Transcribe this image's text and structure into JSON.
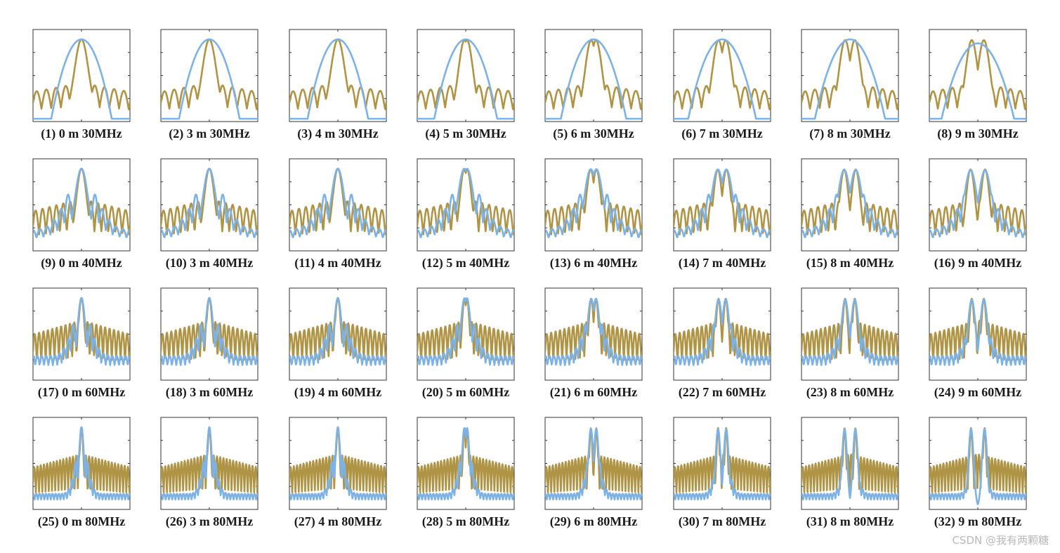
{
  "chart_data": {
    "type": "line",
    "layout": "small-multiples 4 rows x 8 columns",
    "series_colors": {
      "series_a": "#B09445",
      "series_b": "#7EB2E4"
    },
    "panels": [
      {
        "label": "(1) 0 m 30MHz",
        "distance_m": 0,
        "frequency_mhz": 30
      },
      {
        "label": "(2) 3 m 30MHz",
        "distance_m": 3,
        "frequency_mhz": 30
      },
      {
        "label": "(3) 4 m 30MHz",
        "distance_m": 4,
        "frequency_mhz": 30
      },
      {
        "label": "(4) 5 m 30MHz",
        "distance_m": 5,
        "frequency_mhz": 30
      },
      {
        "label": "(5) 6 m 30MHz",
        "distance_m": 6,
        "frequency_mhz": 30
      },
      {
        "label": "(6) 7 m 30MHz",
        "distance_m": 7,
        "frequency_mhz": 30
      },
      {
        "label": "(7) 8 m 30MHz",
        "distance_m": 8,
        "frequency_mhz": 30
      },
      {
        "label": "(8) 9 m 30MHz",
        "distance_m": 9,
        "frequency_mhz": 30
      },
      {
        "label": "(9) 0 m 40MHz",
        "distance_m": 0,
        "frequency_mhz": 40
      },
      {
        "label": "(10) 3 m 40MHz",
        "distance_m": 3,
        "frequency_mhz": 40
      },
      {
        "label": "(11) 4 m 40MHz",
        "distance_m": 4,
        "frequency_mhz": 40
      },
      {
        "label": "(12) 5 m 40MHz",
        "distance_m": 5,
        "frequency_mhz": 40
      },
      {
        "label": "(13) 6 m 40MHz",
        "distance_m": 6,
        "frequency_mhz": 40
      },
      {
        "label": "(14) 7 m 40MHz",
        "distance_m": 7,
        "frequency_mhz": 40
      },
      {
        "label": "(15) 8 m 40MHz",
        "distance_m": 8,
        "frequency_mhz": 40
      },
      {
        "label": "(16) 9 m 40MHz",
        "distance_m": 9,
        "frequency_mhz": 40
      },
      {
        "label": "(17) 0 m 60MHz",
        "distance_m": 0,
        "frequency_mhz": 60
      },
      {
        "label": "(18) 3 m 60MHz",
        "distance_m": 3,
        "frequency_mhz": 60
      },
      {
        "label": "(19) 4 m 60MHz",
        "distance_m": 4,
        "frequency_mhz": 60
      },
      {
        "label": "(20) 5 m 60MHz",
        "distance_m": 5,
        "frequency_mhz": 60
      },
      {
        "label": "(21) 6 m 60MHz",
        "distance_m": 6,
        "frequency_mhz": 60
      },
      {
        "label": "(22) 7 m 60MHz",
        "distance_m": 7,
        "frequency_mhz": 60
      },
      {
        "label": "(23) 8 m 60MHz",
        "distance_m": 8,
        "frequency_mhz": 60
      },
      {
        "label": "(24) 9 m 60MHz",
        "distance_m": 9,
        "frequency_mhz": 60
      },
      {
        "label": "(25) 0 m 80MHz",
        "distance_m": 0,
        "frequency_mhz": 80
      },
      {
        "label": "(26) 3 m 80MHz",
        "distance_m": 3,
        "frequency_mhz": 80
      },
      {
        "label": "(27) 4 m 80MHz",
        "distance_m": 4,
        "frequency_mhz": 80
      },
      {
        "label": "(28) 5 m 80MHz",
        "distance_m": 5,
        "frequency_mhz": 80
      },
      {
        "label": "(29) 6 m 80MHz",
        "distance_m": 6,
        "frequency_mhz": 80
      },
      {
        "label": "(30) 7 m 80MHz",
        "distance_m": 7,
        "frequency_mhz": 80
      },
      {
        "label": "(31) 8 m 80MHz",
        "distance_m": 8,
        "frequency_mhz": 80
      },
      {
        "label": "(32) 9 m 80MHz",
        "distance_m": 9,
        "frequency_mhz": 80
      }
    ]
  },
  "watermark": "CSDN @我有两颗糖"
}
